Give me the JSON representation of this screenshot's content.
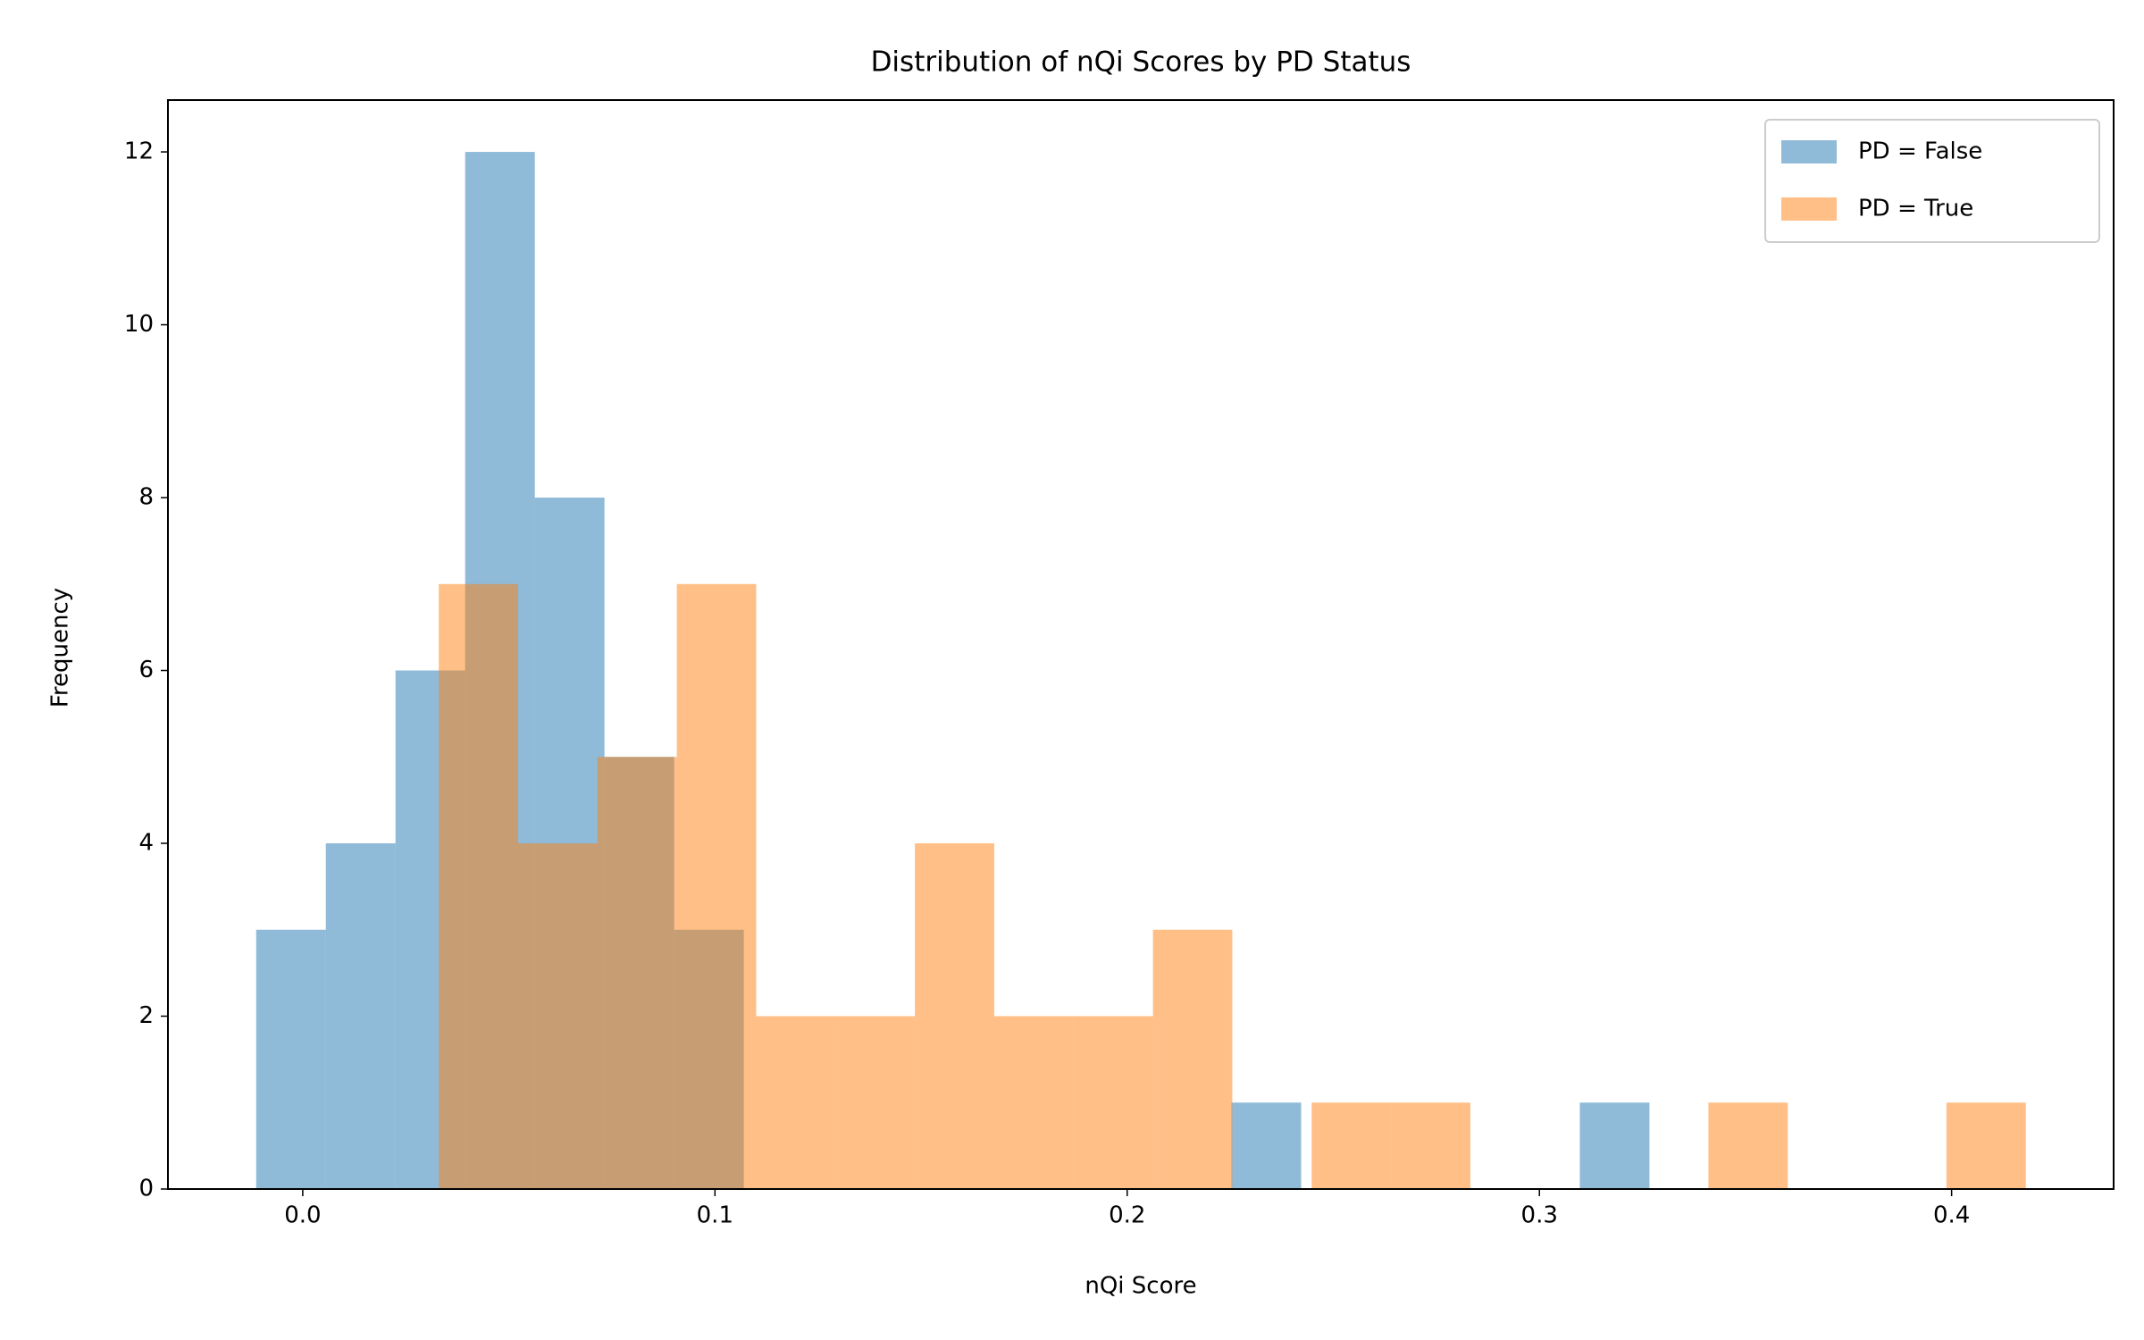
{
  "chart_data": {
    "type": "histogram",
    "title": "Distribution of nQi Scores by PD Status",
    "x_label": "nQi Score",
    "y_label": "Frequency",
    "xlim": [
      -0.0327,
      0.4393
    ],
    "ylim": [
      0,
      12.6
    ],
    "xticks": [
      {
        "value": 0,
        "label": "0.0"
      },
      0.1,
      0.2,
      0.3,
      0.4
    ],
    "yticks": [
      0,
      2,
      4,
      6,
      8,
      10,
      12
    ],
    "legend": "upper right",
    "alpha": 0.5,
    "series": [
      {
        "name": "PD = False",
        "color": "#1f77b4",
        "bins": [
          -0.0113,
          0.0056,
          0.0225,
          0.0394,
          0.0563,
          0.0732,
          0.0901,
          0.107,
          0.1239,
          0.1408,
          0.1577,
          0.1746,
          0.1915,
          0.2084,
          0.2253,
          0.2422,
          0.2591,
          0.276,
          0.2929,
          0.3098,
          0.3267
        ],
        "values": [
          3,
          4,
          6,
          12,
          8,
          5,
          3,
          0,
          0,
          0,
          0,
          0,
          0,
          0,
          1,
          0,
          0,
          0,
          0,
          1
        ]
      },
      {
        "name": "PD = True",
        "color": "#ff7f0e",
        "bins": [
          0.033,
          0.05225,
          0.0715,
          0.09075,
          0.11,
          0.12925,
          0.1485,
          0.16775,
          0.187,
          0.20625,
          0.2255,
          0.24475,
          0.264,
          0.28325,
          0.3025,
          0.32175,
          0.341,
          0.36025,
          0.3795,
          0.39875,
          0.418
        ],
        "values": [
          7,
          4,
          5,
          7,
          2,
          2,
          4,
          2,
          2,
          3,
          0,
          1,
          1,
          0,
          0,
          0,
          1,
          0,
          0,
          1
        ]
      }
    ]
  }
}
